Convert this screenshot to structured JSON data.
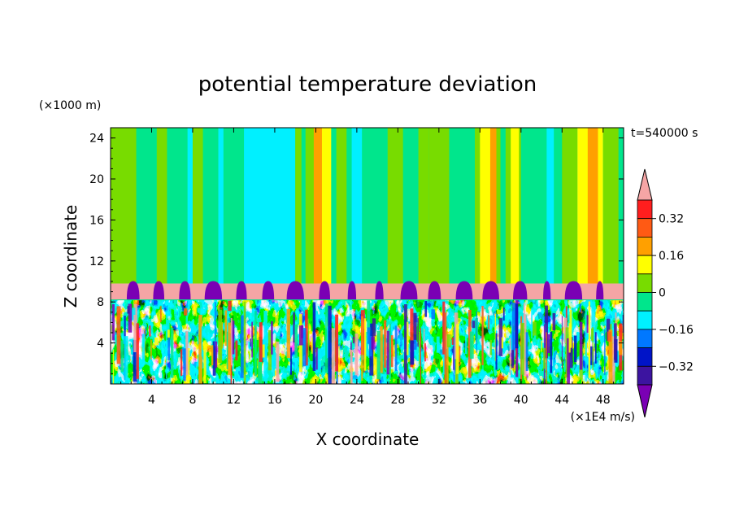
{
  "chart_data": {
    "type": "heatmap",
    "title": "potential temperature deviation",
    "xlabel": "X coordinate",
    "ylabel": "Z coordinate",
    "x_unit": "(×1E4 m/s)",
    "y_unit": "(×1000 m)",
    "time_label": "t=540000 s",
    "xlim": [
      0,
      50
    ],
    "ylim": [
      0,
      25
    ],
    "x_ticks": [
      "4",
      "8",
      "12",
      "16",
      "20",
      "24",
      "28",
      "32",
      "36",
      "40",
      "44",
      "48"
    ],
    "y_ticks": [
      "4",
      "8",
      "12",
      "16",
      "20",
      "24"
    ],
    "colorbar": {
      "labels": [
        "0.32",
        "0.16",
        "0",
        "−0.16",
        "−0.32"
      ],
      "levels": [
        -0.4,
        -0.32,
        -0.24,
        -0.16,
        -0.08,
        0,
        0.08,
        0.16,
        0.24,
        0.32,
        0.4
      ],
      "colors": [
        "#7a00b4",
        "#3c14a0",
        "#0014c8",
        "#0078ff",
        "#00f0ff",
        "#00e68c",
        "#78dc00",
        "#ffff00",
        "#ffa000",
        "#ff5a14",
        "#ff1e1e",
        "#f5a5a5"
      ]
    },
    "layers": [
      {
        "name": "upper",
        "z": [
          9.8,
          25
        ],
        "dominant": "0",
        "notes": "mostly slightly negative with cyan column near x=13-18 and warm columns near x=20, 36-40, 45-48"
      },
      {
        "name": "inversion",
        "z": [
          8.2,
          9.8
        ],
        "dominant": "0.40",
        "notes": "band above max level with periodic purple blobs"
      },
      {
        "name": "lower",
        "z": [
          0,
          8.2
        ],
        "dominant": "mixed",
        "notes": "turbulent mix of all levels"
      }
    ]
  }
}
